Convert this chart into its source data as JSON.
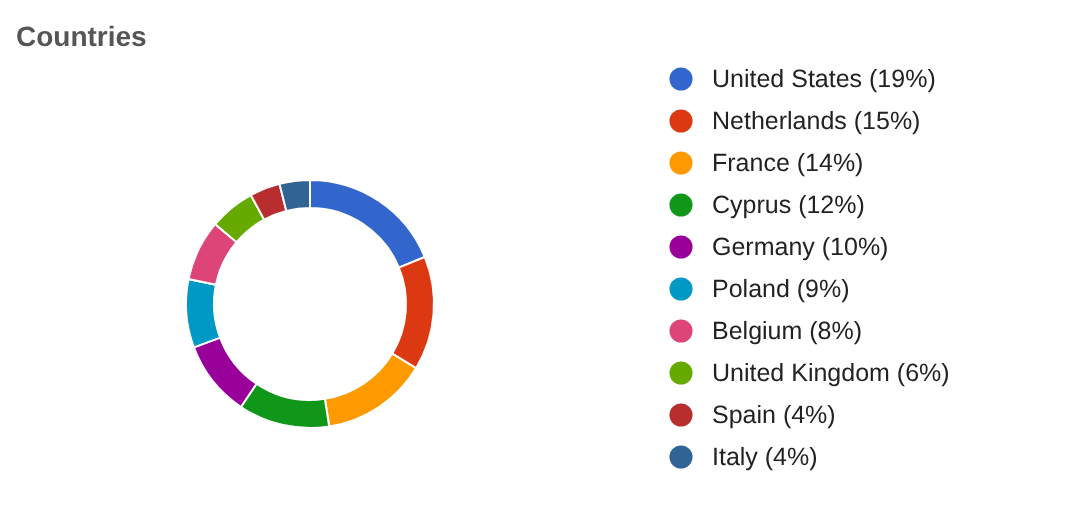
{
  "chart_data": {
    "type": "donut",
    "title": "Countries",
    "categories": [
      "United States (19%)",
      "Netherlands (15%)",
      "France (14%)",
      "Cyprus (12%)",
      "Germany (10%)",
      "Poland (9%)",
      "Belgium (8%)",
      "United Kingdom (6%)",
      "Spain (4%)",
      "Italy (4%)"
    ],
    "values": [
      19,
      15,
      14,
      12,
      10,
      9,
      8,
      6,
      4,
      4
    ],
    "colors": [
      "#3366cc",
      "#dc3912",
      "#ff9900",
      "#109618",
      "#990099",
      "#0099c6",
      "#dd4477",
      "#66aa00",
      "#b82e2e",
      "#316395"
    ],
    "legend": "right"
  }
}
